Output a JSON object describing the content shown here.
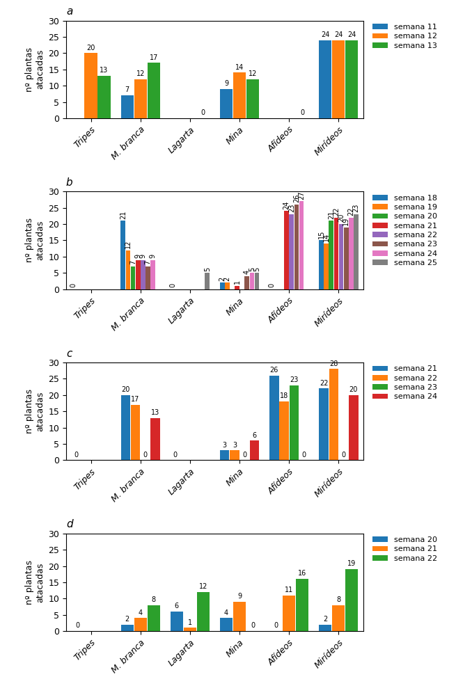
{
  "chart_data": [
    {
      "type": "bar",
      "title": "a",
      "y_label": "nº plantas\natacadas",
      "categories": [
        "Tripes",
        "M. branca",
        "Lagarta",
        "Mina",
        "Afídeos",
        "Mirídeos"
      ],
      "series": [
        {
          "name": "semana 11",
          "values": [
            0,
            7,
            0,
            9,
            0,
            24
          ],
          "value_labels": [
            null,
            "7",
            null,
            "9",
            null,
            "24"
          ]
        },
        {
          "name": "semana 12",
          "values": [
            20,
            12,
            0,
            14,
            0,
            24
          ],
          "value_labels": [
            "20",
            "12",
            null,
            "14",
            null,
            "24"
          ]
        },
        {
          "name": "semana 13",
          "values": [
            13,
            17,
            0,
            12,
            0,
            24
          ],
          "value_labels": [
            "13",
            "17",
            "0",
            "12",
            "0",
            "24"
          ]
        }
      ],
      "ylim": [
        0,
        30
      ],
      "yticks": [
        0,
        5,
        10,
        15,
        20,
        25,
        30
      ],
      "legend": "upper left",
      "data_labels": true
    },
    {
      "type": "bar",
      "title": "b",
      "y_label": "nº plantas\natacadas",
      "categories": [
        "Tripes",
        "M. branca",
        "Lagarta",
        "Mina",
        "Afídeos",
        "Mirídeos"
      ],
      "series": [
        {
          "name": "semana 18",
          "values": [
            0,
            21,
            0,
            2,
            0,
            15
          ],
          "value_labels": [
            "0",
            "21",
            "0",
            "2",
            "0",
            "15"
          ]
        },
        {
          "name": "semana 19",
          "values": [
            0,
            12,
            0,
            2,
            0,
            14
          ],
          "value_labels": [
            null,
            "12",
            null,
            "2",
            null,
            "14"
          ]
        },
        {
          "name": "semana 20",
          "values": [
            0,
            7,
            0,
            0,
            0,
            21
          ],
          "value_labels": [
            null,
            "7",
            null,
            null,
            null,
            "21"
          ]
        },
        {
          "name": "semana 21",
          "values": [
            0,
            9,
            0,
            1,
            24,
            22
          ],
          "value_labels": [
            null,
            "9",
            null,
            "1",
            "24",
            "22"
          ]
        },
        {
          "name": "semana 22",
          "values": [
            0,
            9,
            0,
            0,
            23,
            20
          ],
          "value_labels": [
            null,
            "9",
            null,
            null,
            "23",
            "20"
          ]
        },
        {
          "name": "semana 23",
          "values": [
            0,
            7,
            0,
            4,
            26,
            19
          ],
          "value_labels": [
            null,
            "7",
            null,
            "4",
            "26",
            "19"
          ]
        },
        {
          "name": "semana 24",
          "values": [
            0,
            9,
            0,
            5,
            27,
            22
          ],
          "value_labels": [
            null,
            "9",
            null,
            "5",
            "27",
            "22"
          ]
        },
        {
          "name": "semana 25",
          "values": [
            0,
            0,
            5,
            5,
            0,
            23
          ],
          "value_labels": [
            null,
            null,
            "5",
            "5",
            null,
            "23"
          ]
        }
      ],
      "ylim": [
        0,
        30
      ],
      "yticks": [
        0,
        5,
        10,
        15,
        20,
        25,
        30
      ],
      "legend": "upper left",
      "data_labels": true
    },
    {
      "type": "bar",
      "title": "c",
      "y_label": "nº plantas\natacadas",
      "categories": [
        "Tripes",
        "M. branca",
        "Lagarta",
        "Mina",
        "Afídeos",
        "Mirídeos"
      ],
      "series": [
        {
          "name": "semana 21",
          "values": [
            0,
            20,
            0,
            3,
            26,
            22
          ],
          "value_labels": [
            "0",
            "20",
            "0",
            "3",
            "26",
            "22"
          ]
        },
        {
          "name": "semana 22",
          "values": [
            0,
            17,
            0,
            3,
            18,
            28
          ],
          "value_labels": [
            null,
            "17",
            null,
            "3",
            "18",
            "28"
          ]
        },
        {
          "name": "semana 23",
          "values": [
            0,
            0,
            0,
            0,
            23,
            0
          ],
          "value_labels": [
            null,
            "0",
            null,
            "0",
            "23",
            "0"
          ]
        },
        {
          "name": "semana 24",
          "values": [
            0,
            13,
            0,
            6,
            0,
            20
          ],
          "value_labels": [
            null,
            "13",
            null,
            "6",
            "0",
            "20"
          ]
        }
      ],
      "ylim": [
        0,
        30
      ],
      "yticks": [
        0,
        5,
        10,
        15,
        20,
        25,
        30
      ],
      "legend": "upper left",
      "data_labels": true
    },
    {
      "type": "bar",
      "title": "d",
      "y_label": "nº plantas\natacadas",
      "categories": [
        "Tripes",
        "M. branca",
        "Lagarta",
        "Mina",
        "Afídeos",
        "Mirídeos"
      ],
      "series": [
        {
          "name": "semana 20",
          "values": [
            0,
            2,
            6,
            4,
            0,
            2
          ],
          "value_labels": [
            "0",
            "2",
            "6",
            "4",
            "0",
            "2"
          ]
        },
        {
          "name": "semana 21",
          "values": [
            0,
            4,
            1,
            9,
            11,
            8
          ],
          "value_labels": [
            null,
            "4",
            "1",
            "9",
            "11",
            "8"
          ]
        },
        {
          "name": "semana 22",
          "values": [
            0,
            8,
            12,
            0,
            16,
            19
          ],
          "value_labels": [
            null,
            "8",
            "12",
            "0",
            "16",
            "19"
          ]
        }
      ],
      "ylim": [
        0,
        30
      ],
      "yticks": [
        0,
        5,
        10,
        15,
        20,
        25,
        30
      ],
      "legend": "upper left",
      "data_labels": true
    }
  ]
}
